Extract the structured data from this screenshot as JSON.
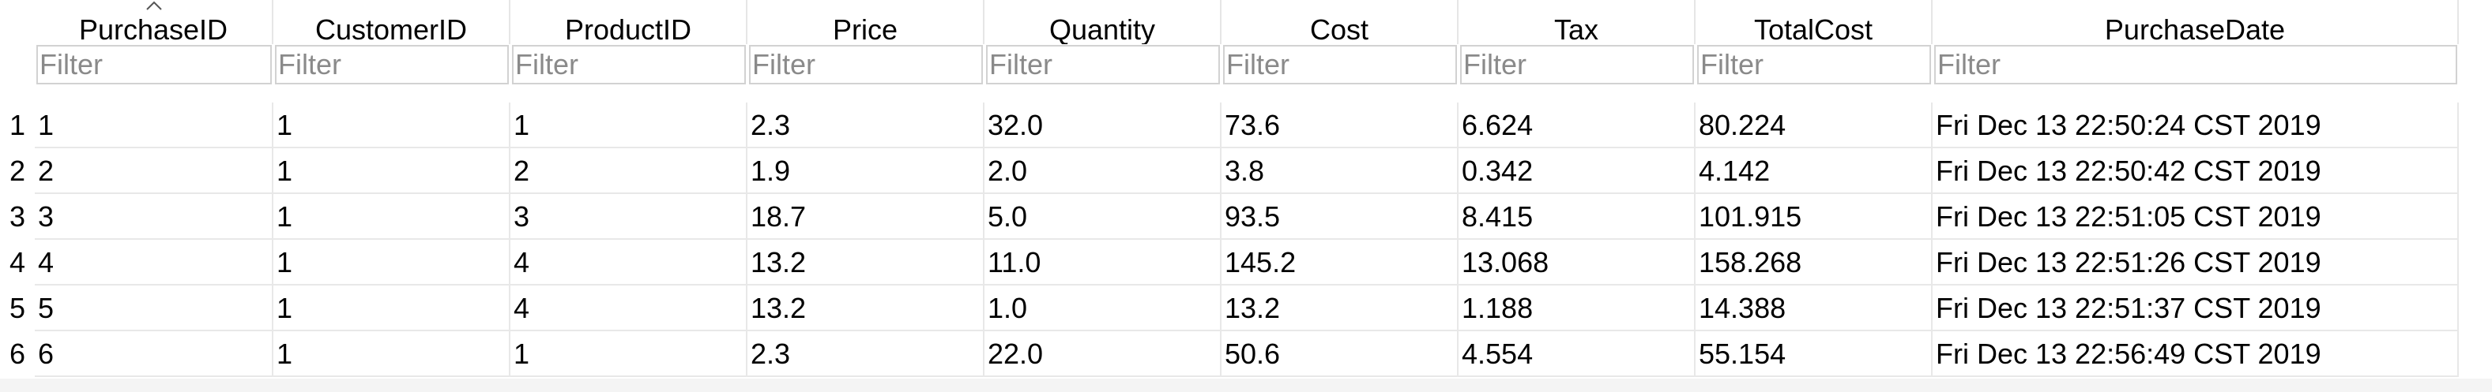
{
  "table": {
    "columns": [
      {
        "key": "PurchaseID",
        "label": "PurchaseID",
        "filter_placeholder": "Filter"
      },
      {
        "key": "CustomerID",
        "label": "CustomerID",
        "filter_placeholder": "Filter"
      },
      {
        "key": "ProductID",
        "label": "ProductID",
        "filter_placeholder": "Filter"
      },
      {
        "key": "Price",
        "label": "Price",
        "filter_placeholder": "Filter"
      },
      {
        "key": "Quantity",
        "label": "Quantity",
        "filter_placeholder": "Filter"
      },
      {
        "key": "Cost",
        "label": "Cost",
        "filter_placeholder": "Filter"
      },
      {
        "key": "Tax",
        "label": "Tax",
        "filter_placeholder": "Filter"
      },
      {
        "key": "TotalCost",
        "label": "TotalCost",
        "filter_placeholder": "Filter"
      },
      {
        "key": "PurchaseDate",
        "label": "PurchaseDate",
        "filter_placeholder": "Filter"
      }
    ],
    "sorted_column": "PurchaseID",
    "sort_direction": "ascending",
    "rows": [
      {
        "row_number": "1",
        "cells": [
          "1",
          "1",
          "1",
          "2.3",
          "32.0",
          "73.6",
          "6.624",
          "80.224",
          "Fri Dec 13 22:50:24 CST 2019"
        ]
      },
      {
        "row_number": "2",
        "cells": [
          "2",
          "1",
          "2",
          "1.9",
          "2.0",
          "3.8",
          "0.342",
          "4.142",
          "Fri Dec 13 22:50:42 CST 2019"
        ]
      },
      {
        "row_number": "3",
        "cells": [
          "3",
          "1",
          "3",
          "18.7",
          "5.0",
          "93.5",
          "8.415",
          "101.915",
          "Fri Dec 13 22:51:05 CST 2019"
        ]
      },
      {
        "row_number": "4",
        "cells": [
          "4",
          "1",
          "4",
          "13.2",
          "11.0",
          "145.2",
          "13.068",
          "158.268",
          "Fri Dec 13 22:51:26 CST 2019"
        ]
      },
      {
        "row_number": "5",
        "cells": [
          "5",
          "1",
          "4",
          "13.2",
          "1.0",
          "13.2",
          "1.188",
          "14.388",
          "Fri Dec 13 22:51:37 CST 2019"
        ]
      },
      {
        "row_number": "6",
        "cells": [
          "6",
          "1",
          "1",
          "2.3",
          "22.0",
          "50.6",
          "4.554",
          "55.154",
          "Fri Dec 13 22:56:49 CST 2019"
        ]
      }
    ]
  },
  "colors": {
    "background": "#ffffff",
    "grid_line": "#e8e8e8",
    "filter_border": "#d2d2d2",
    "placeholder_text": "#8a8a8a"
  },
  "icons": {
    "sort_indicator": "sort-ascending-icon"
  }
}
